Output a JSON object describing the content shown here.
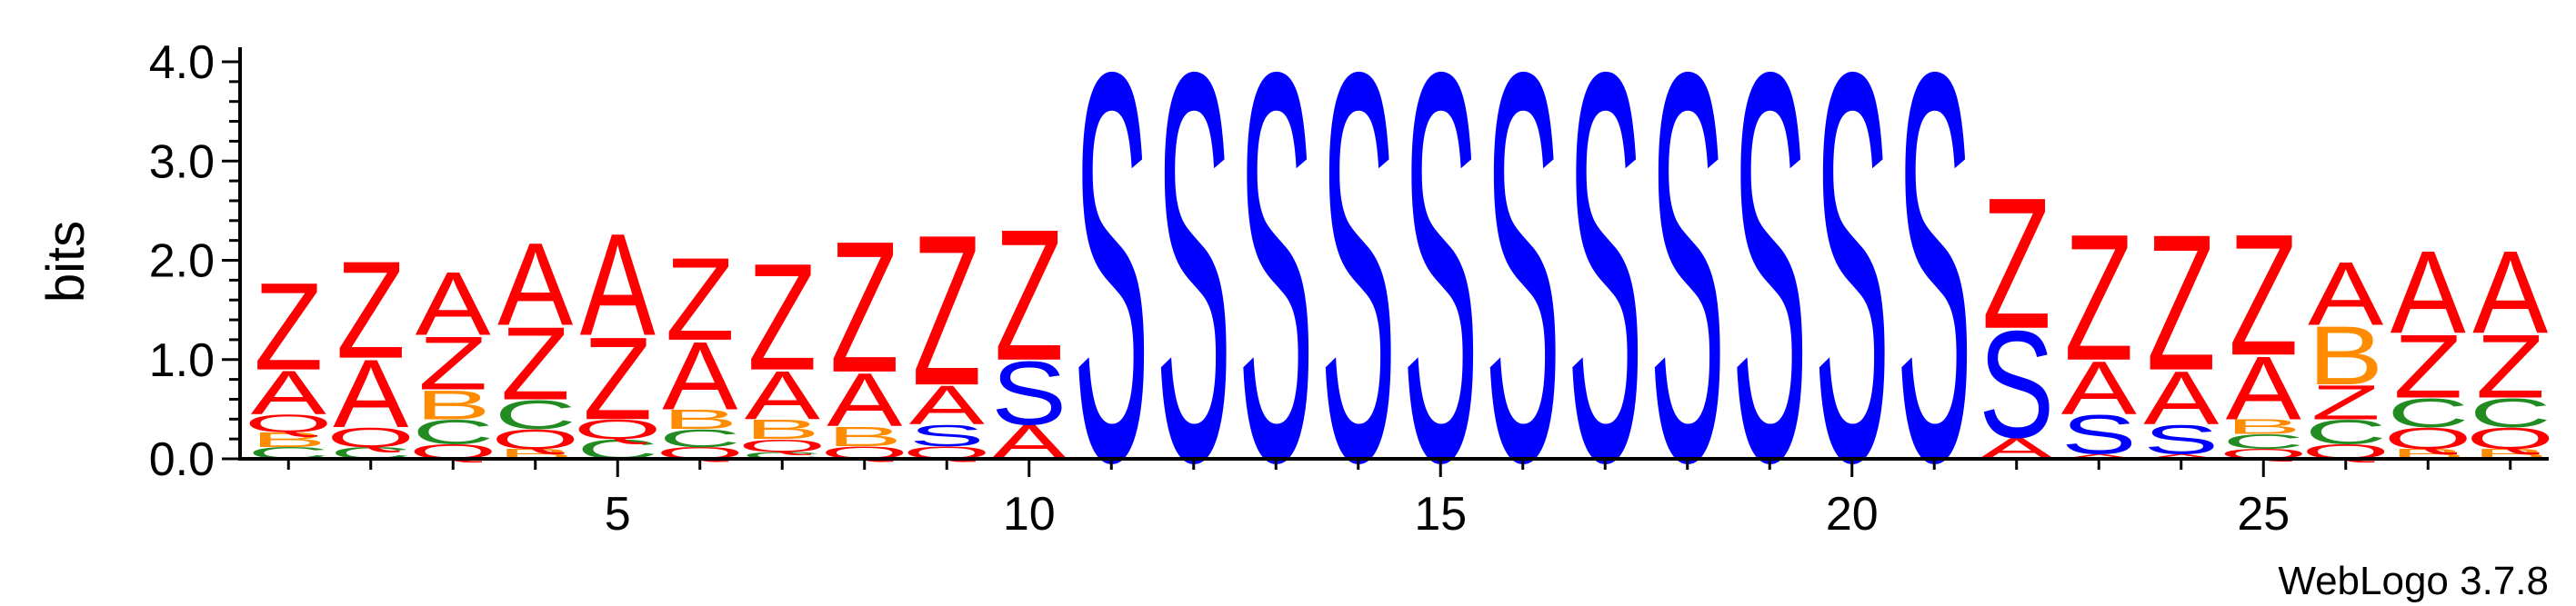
{
  "chart_data": {
    "type": "sequence-logo",
    "ylabel": "bits",
    "xlabel": "",
    "ylim": [
      0,
      4.0
    ],
    "yticks": [
      "0.0",
      "1.0",
      "2.0",
      "3.0",
      "4.0"
    ],
    "xticks": [
      5,
      10,
      15,
      20,
      25
    ],
    "watermark": "WebLogo 3.7.8",
    "colors": {
      "Z": "#ff0000",
      "A": "#ff0000",
      "Q": "#ff0000",
      "S": "#0000ff",
      "B": "#ff8c00",
      "C": "#228b22"
    },
    "positions": [
      {
        "pos": 1,
        "stack": [
          [
            "C",
            0.12
          ],
          [
            "B",
            0.15
          ],
          [
            "Q",
            0.18
          ],
          [
            "A",
            0.45
          ],
          [
            "Z",
            0.9
          ]
        ]
      },
      {
        "pos": 2,
        "stack": [
          [
            "C",
            0.12
          ],
          [
            "Q",
            0.2
          ],
          [
            "A",
            0.7
          ],
          [
            "Z",
            1.0
          ]
        ]
      },
      {
        "pos": 3,
        "stack": [
          [
            "Q",
            0.15
          ],
          [
            "C",
            0.25
          ],
          [
            "B",
            0.3
          ],
          [
            "Z",
            0.55
          ],
          [
            "A",
            0.65
          ]
        ]
      },
      {
        "pos": 4,
        "stack": [
          [
            "B",
            0.1
          ],
          [
            "Q",
            0.2
          ],
          [
            "C",
            0.3
          ],
          [
            "Z",
            0.75
          ],
          [
            "A",
            0.85
          ]
        ]
      },
      {
        "pos": 5,
        "stack": [
          [
            "C",
            0.2
          ],
          [
            "Q",
            0.2
          ],
          [
            "Z",
            0.85
          ],
          [
            "A",
            1.05
          ]
        ]
      },
      {
        "pos": 6,
        "stack": [
          [
            "Q",
            0.12
          ],
          [
            "C",
            0.18
          ],
          [
            "B",
            0.2
          ],
          [
            "A",
            0.7
          ],
          [
            "Z",
            0.85
          ]
        ]
      },
      {
        "pos": 7,
        "stack": [
          [
            "C",
            0.07
          ],
          [
            "Q",
            0.13
          ],
          [
            "B",
            0.2
          ],
          [
            "A",
            0.5
          ],
          [
            "Z",
            1.1
          ]
        ]
      },
      {
        "pos": 8,
        "stack": [
          [
            "Q",
            0.13
          ],
          [
            "B",
            0.2
          ],
          [
            "A",
            0.55
          ],
          [
            "Z",
            1.35
          ]
        ]
      },
      {
        "pos": 9,
        "stack": [
          [
            "Q",
            0.13
          ],
          [
            "S",
            0.22
          ],
          [
            "A",
            0.4
          ],
          [
            "Z",
            1.55
          ]
        ]
      },
      {
        "pos": 10,
        "stack": [
          [
            "A",
            0.35
          ],
          [
            "S",
            0.65
          ],
          [
            "Z",
            1.35
          ]
        ]
      },
      {
        "pos": 11,
        "stack": [
          [
            "S",
            4.0
          ]
        ]
      },
      {
        "pos": 12,
        "stack": [
          [
            "S",
            4.0
          ]
        ]
      },
      {
        "pos": 13,
        "stack": [
          [
            "S",
            4.0
          ]
        ]
      },
      {
        "pos": 14,
        "stack": [
          [
            "S",
            4.0
          ]
        ]
      },
      {
        "pos": 15,
        "stack": [
          [
            "S",
            4.0
          ]
        ]
      },
      {
        "pos": 16,
        "stack": [
          [
            "S",
            4.0
          ]
        ]
      },
      {
        "pos": 17,
        "stack": [
          [
            "S",
            4.0
          ]
        ]
      },
      {
        "pos": 18,
        "stack": [
          [
            "S",
            4.0
          ]
        ]
      },
      {
        "pos": 19,
        "stack": [
          [
            "S",
            4.0
          ]
        ]
      },
      {
        "pos": 20,
        "stack": [
          [
            "S",
            4.0
          ]
        ]
      },
      {
        "pos": 21,
        "stack": [
          [
            "S",
            4.0
          ]
        ]
      },
      {
        "pos": 22,
        "stack": [
          [
            "A",
            0.22
          ],
          [
            "S",
            1.1
          ],
          [
            "Z",
            1.35
          ]
        ]
      },
      {
        "pos": 23,
        "stack": [
          [
            "A",
            0.05
          ],
          [
            "S",
            0.4
          ],
          [
            "A",
            0.55
          ],
          [
            "Z",
            1.3
          ]
        ]
      },
      {
        "pos": 24,
        "stack": [
          [
            "A",
            0.05
          ],
          [
            "S",
            0.3
          ],
          [
            "A",
            0.55
          ],
          [
            "Z",
            1.4
          ]
        ]
      },
      {
        "pos": 25,
        "stack": [
          [
            "Q",
            0.1
          ],
          [
            "C",
            0.15
          ],
          [
            "B",
            0.15
          ],
          [
            "A",
            0.65
          ],
          [
            "Z",
            1.25
          ]
        ]
      },
      {
        "pos": 26,
        "stack": [
          [
            "Q",
            0.15
          ],
          [
            "C",
            0.25
          ],
          [
            "Z",
            0.35
          ],
          [
            "B",
            0.6
          ],
          [
            "A",
            0.65
          ]
        ]
      },
      {
        "pos": 27,
        "stack": [
          [
            "B",
            0.1
          ],
          [
            "Q",
            0.22
          ],
          [
            "C",
            0.3
          ],
          [
            "Z",
            0.65
          ],
          [
            "A",
            0.85
          ]
        ]
      },
      {
        "pos": 28,
        "stack": [
          [
            "B",
            0.1
          ],
          [
            "Q",
            0.22
          ],
          [
            "C",
            0.3
          ],
          [
            "Z",
            0.65
          ],
          [
            "A",
            0.85
          ]
        ]
      }
    ]
  }
}
